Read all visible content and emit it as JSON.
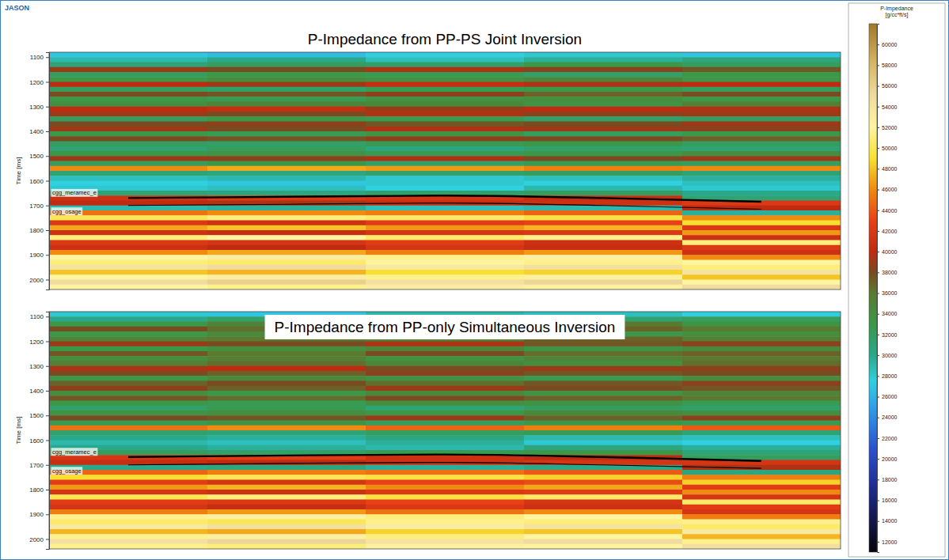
{
  "brand": "JASON",
  "colorbar": {
    "title": [
      "P-Impedance",
      "[g/cc*ft/s]"
    ],
    "range": [
      11000,
      62000
    ],
    "ticks": [
      12000,
      14000,
      16000,
      18000,
      20000,
      22000,
      24000,
      26000,
      28000,
      30000,
      32000,
      34000,
      36000,
      38000,
      40000,
      42000,
      44000,
      46000,
      48000,
      50000,
      52000,
      54000,
      56000,
      58000,
      60000
    ]
  },
  "chart_data": [
    {
      "type": "heatmap",
      "title": "P-Impedance from PP-PS Joint Inversion",
      "y_label": "Time [ms]",
      "ylim": [
        1080,
        2040
      ],
      "yticks": [
        1100,
        1200,
        1300,
        1400,
        1500,
        1600,
        1700,
        1800,
        1900,
        2000
      ],
      "tick_labels": "y",
      "y_edges": [
        1080,
        1100,
        1120,
        1140,
        1160,
        1180,
        1200,
        1220,
        1240,
        1260,
        1280,
        1300,
        1320,
        1340,
        1360,
        1380,
        1400,
        1420,
        1440,
        1460,
        1480,
        1500,
        1520,
        1540,
        1560,
        1580,
        1600,
        1620,
        1640,
        1660,
        1680,
        1700,
        1720,
        1740,
        1760,
        1780,
        1800,
        1820,
        1840,
        1860,
        1880,
        1900,
        1920,
        1940,
        1960,
        1980,
        2000,
        2020,
        2040
      ],
      "cells": [
        [
          27000,
          26500,
          27500,
          28000,
          27000
        ],
        [
          29000,
          30000,
          28500,
          29500,
          30500
        ],
        [
          31000,
          32000,
          31500,
          33000,
          32000
        ],
        [
          39000,
          38000,
          39500,
          38500,
          37500
        ],
        [
          32000,
          33000,
          32500,
          31500,
          33000
        ],
        [
          33000,
          34000,
          33500,
          34500,
          33000
        ],
        [
          40000,
          39000,
          40500,
          39500,
          40000
        ],
        [
          32000,
          31500,
          32500,
          33000,
          32000
        ],
        [
          38000,
          37500,
          38500,
          37000,
          38000
        ],
        [
          33000,
          32500,
          33500,
          34000,
          33000
        ],
        [
          34000,
          35000,
          34500,
          33500,
          35500
        ],
        [
          40000,
          40500,
          39000,
          40000,
          39500
        ],
        [
          39000,
          38000,
          39500,
          38500,
          39000
        ],
        [
          32000,
          33000,
          32500,
          31500,
          32000
        ],
        [
          38000,
          38500,
          37500,
          38000,
          39000
        ],
        [
          39000,
          38000,
          39500,
          39000,
          38500
        ],
        [
          33000,
          32500,
          33500,
          32000,
          33000
        ],
        [
          38000,
          37500,
          38500,
          38000,
          37000
        ],
        [
          32000,
          31500,
          32500,
          33000,
          32000
        ],
        [
          31000,
          32000,
          30500,
          31500,
          31000
        ],
        [
          33000,
          33500,
          32500,
          33000,
          34000
        ],
        [
          39000,
          38500,
          39500,
          38000,
          39000
        ],
        [
          32000,
          33000,
          31500,
          32500,
          32000
        ],
        [
          46000,
          47000,
          46500,
          45500,
          46000
        ],
        [
          31000,
          30500,
          31500,
          32000,
          31000
        ],
        [
          28500,
          29000,
          28000,
          28500,
          29500
        ],
        [
          27500,
          27000,
          28000,
          27500,
          28500
        ],
        [
          28000,
          28500,
          27500,
          29000,
          28000
        ],
        [
          31000,
          30500,
          31500,
          32000,
          30000
        ],
        [
          41000,
          42000,
          41500,
          40500,
          31000
        ],
        [
          40000,
          39500,
          40500,
          41000,
          42000
        ],
        [
          29000,
          29500,
          28500,
          29000,
          40000
        ],
        [
          45000,
          46000,
          45500,
          44500,
          29500
        ],
        [
          50000,
          51000,
          50500,
          49500,
          46000
        ],
        [
          42000,
          41000,
          42500,
          43000,
          49000
        ],
        [
          47000,
          48000,
          46500,
          47500,
          42000
        ],
        [
          41000,
          40500,
          41500,
          42000,
          46500
        ],
        [
          51000,
          52000,
          50500,
          51500,
          41000
        ],
        [
          42000,
          41500,
          42500,
          41000,
          51000
        ],
        [
          41000,
          40000,
          41500,
          40500,
          42000
        ],
        [
          46000,
          47000,
          45500,
          46500,
          41000
        ],
        [
          52000,
          53000,
          51500,
          52500,
          46000
        ],
        [
          51000,
          50500,
          52000,
          51500,
          52000
        ],
        [
          54000,
          55000,
          53500,
          54500,
          51000
        ],
        [
          48000,
          47500,
          49000,
          48500,
          54000
        ],
        [
          52000,
          53000,
          51500,
          52500,
          48000
        ],
        [
          55000,
          56000,
          54500,
          55500,
          52000
        ],
        [
          52000,
          51500,
          53000,
          52500,
          55000
        ]
      ],
      "series": [
        {
          "name": "cgg_meramec_e",
          "color": "#000000",
          "values": [
            1670,
            1665,
            1660,
            1670,
            1685
          ]
        },
        {
          "name": "cgg_osage",
          "color": "#000000",
          "values": [
            1700,
            1695,
            1690,
            1700,
            1715
          ]
        }
      ]
    },
    {
      "type": "heatmap",
      "title": "P-Impedance from PP-only Simultaneous Inversion",
      "y_label": "Time [ms]",
      "ylim": [
        1080,
        2040
      ],
      "yticks": [
        1100,
        1200,
        1300,
        1400,
        1500,
        1600,
        1700,
        1800,
        1900,
        2000
      ],
      "tick_labels": "y",
      "y_edges": [
        1080,
        1100,
        1120,
        1140,
        1160,
        1180,
        1200,
        1220,
        1240,
        1260,
        1280,
        1300,
        1320,
        1340,
        1360,
        1380,
        1400,
        1420,
        1440,
        1460,
        1480,
        1500,
        1520,
        1540,
        1560,
        1580,
        1600,
        1620,
        1640,
        1660,
        1680,
        1700,
        1720,
        1740,
        1760,
        1780,
        1800,
        1820,
        1840,
        1860,
        1880,
        1900,
        1920,
        1940,
        1960,
        1980,
        2000,
        2020,
        2040
      ],
      "cells": [
        [
          28000,
          27000,
          29000,
          28500,
          27500
        ],
        [
          30000,
          31500,
          29500,
          31000,
          32000
        ],
        [
          33000,
          35000,
          34000,
          36000,
          33500
        ],
        [
          38000,
          36500,
          38500,
          37000,
          36000
        ],
        [
          33000,
          34500,
          35500,
          33000,
          34000
        ],
        [
          35000,
          36000,
          34500,
          37000,
          35500
        ],
        [
          39000,
          38000,
          39500,
          37500,
          38500
        ],
        [
          33000,
          34000,
          35000,
          33500,
          34500
        ],
        [
          37500,
          36000,
          38000,
          36500,
          37000
        ],
        [
          34000,
          35500,
          33500,
          35000,
          36000
        ],
        [
          35500,
          36500,
          35000,
          34000,
          36500
        ],
        [
          39500,
          40000,
          38000,
          39000,
          38500
        ],
        [
          38000,
          37000,
          38500,
          37500,
          38000
        ],
        [
          33000,
          34500,
          33500,
          32500,
          34000
        ],
        [
          37000,
          38000,
          36500,
          37500,
          38500
        ],
        [
          38500,
          37000,
          39000,
          38000,
          37500
        ],
        [
          34000,
          33000,
          34500,
          33500,
          35000
        ],
        [
          37500,
          36500,
          38000,
          37000,
          36000
        ],
        [
          33000,
          32500,
          34000,
          33500,
          32500
        ],
        [
          31500,
          32500,
          31000,
          32000,
          31500
        ],
        [
          33500,
          34000,
          33000,
          34500,
          34000
        ],
        [
          38000,
          37500,
          39000,
          37000,
          38500
        ],
        [
          32500,
          33500,
          32000,
          33000,
          32500
        ],
        [
          45000,
          46000,
          44500,
          45500,
          44000
        ],
        [
          31500,
          31000,
          32000,
          32500,
          31000
        ],
        [
          30000,
          29500,
          30500,
          29000,
          28500
        ],
        [
          29000,
          28500,
          29500,
          28000,
          27500
        ],
        [
          30000,
          29500,
          29000,
          30500,
          29500
        ],
        [
          32000,
          31500,
          32500,
          33000,
          31000
        ],
        [
          41500,
          42500,
          41000,
          40000,
          32000
        ],
        [
          40500,
          40000,
          41000,
          41500,
          41500
        ],
        [
          30000,
          30500,
          29500,
          30000,
          39500
        ],
        [
          44500,
          45500,
          45000,
          44000,
          30500
        ],
        [
          49000,
          50000,
          49500,
          48500,
          45500
        ],
        [
          42500,
          41500,
          43000,
          43500,
          48500
        ],
        [
          46500,
          47500,
          46000,
          47000,
          42500
        ],
        [
          41500,
          41000,
          42000,
          42500,
          46000
        ],
        [
          50000,
          51000,
          49500,
          50500,
          41500
        ],
        [
          42500,
          42000,
          43000,
          41500,
          50500
        ],
        [
          41500,
          40500,
          42000,
          41000,
          42500
        ],
        [
          45500,
          46500,
          45000,
          46000,
          41500
        ],
        [
          51500,
          52500,
          51000,
          52000,
          45500
        ],
        [
          50500,
          50000,
          51500,
          51000,
          51500
        ],
        [
          53500,
          54500,
          53000,
          54000,
          50500
        ],
        [
          47500,
          47000,
          48500,
          48000,
          53500
        ],
        [
          51500,
          52500,
          51000,
          52000,
          47500
        ],
        [
          54500,
          55500,
          54000,
          55000,
          51500
        ],
        [
          51500,
          51000,
          52500,
          52000,
          54500
        ]
      ],
      "series": [
        {
          "name": "cgg_meramec_e",
          "color": "#000000",
          "values": [
            1668,
            1662,
            1658,
            1668,
            1684
          ]
        },
        {
          "name": "cgg_osage",
          "color": "#000000",
          "values": [
            1700,
            1694,
            1690,
            1700,
            1714
          ]
        }
      ]
    }
  ]
}
